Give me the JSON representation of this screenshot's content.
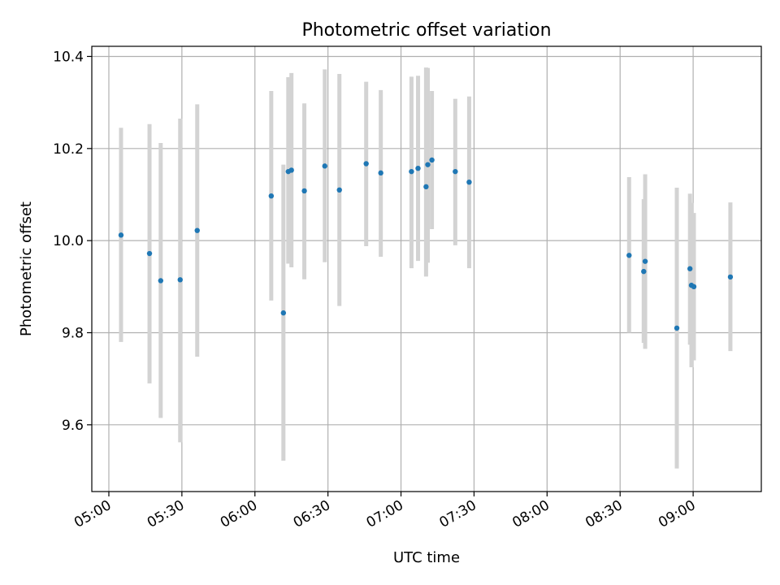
{
  "chart_data": {
    "type": "scatter",
    "title": "Photometric offset variation",
    "xlabel": "UTC time",
    "ylabel": "Photometric offset",
    "xlim": [
      -7,
      268
    ],
    "ylim": [
      9.455,
      10.422
    ],
    "grid": true,
    "x_unit": "minutes after 05:00 UTC",
    "x_ticks": [
      {
        "value": 0,
        "label": "05:00"
      },
      {
        "value": 30,
        "label": "05:30"
      },
      {
        "value": 60,
        "label": "06:00"
      },
      {
        "value": 90,
        "label": "06:30"
      },
      {
        "value": 120,
        "label": "07:00"
      },
      {
        "value": 150,
        "label": "07:30"
      },
      {
        "value": 180,
        "label": "08:00"
      },
      {
        "value": 210,
        "label": "08:30"
      },
      {
        "value": 240,
        "label": "09:00"
      }
    ],
    "y_ticks": [
      {
        "value": 9.6,
        "label": "9.6"
      },
      {
        "value": 9.8,
        "label": "9.8"
      },
      {
        "value": 10.0,
        "label": "10.0"
      },
      {
        "value": 10.2,
        "label": "10.2"
      },
      {
        "value": 10.4,
        "label": "10.4"
      }
    ],
    "series": [
      {
        "name": "Photometric offset",
        "color": "#1f77b4",
        "error_color": "#d3d3d3",
        "points": [
          {
            "x": 5.0,
            "y": 10.012,
            "low": 9.78,
            "high": 10.245
          },
          {
            "x": 16.7,
            "y": 9.972,
            "low": 9.69,
            "high": 10.253
          },
          {
            "x": 21.3,
            "y": 9.913,
            "low": 9.615,
            "high": 10.212
          },
          {
            "x": 29.3,
            "y": 9.915,
            "low": 9.562,
            "high": 10.265
          },
          {
            "x": 36.3,
            "y": 10.022,
            "low": 9.748,
            "high": 10.296
          },
          {
            "x": 66.7,
            "y": 10.097,
            "low": 9.87,
            "high": 10.325
          },
          {
            "x": 71.7,
            "y": 9.843,
            "low": 9.522,
            "high": 10.165
          },
          {
            "x": 73.7,
            "y": 10.15,
            "low": 9.95,
            "high": 10.355
          },
          {
            "x": 75.0,
            "y": 10.153,
            "low": 9.942,
            "high": 10.364
          },
          {
            "x": 80.3,
            "y": 10.108,
            "low": 9.916,
            "high": 10.298
          },
          {
            "x": 88.7,
            "y": 10.162,
            "low": 9.953,
            "high": 10.372
          },
          {
            "x": 94.7,
            "y": 10.11,
            "low": 9.858,
            "high": 10.362
          },
          {
            "x": 105.7,
            "y": 10.167,
            "low": 9.988,
            "high": 10.345
          },
          {
            "x": 111.7,
            "y": 10.147,
            "low": 9.965,
            "high": 10.327
          },
          {
            "x": 124.3,
            "y": 10.15,
            "low": 9.94,
            "high": 10.356
          },
          {
            "x": 127.0,
            "y": 10.157,
            "low": 9.956,
            "high": 10.358
          },
          {
            "x": 130.3,
            "y": 10.117,
            "low": 9.922,
            "high": 10.376
          },
          {
            "x": 131.0,
            "y": 10.165,
            "low": 9.952,
            "high": 10.375
          },
          {
            "x": 132.7,
            "y": 10.175,
            "low": 10.025,
            "high": 10.325
          },
          {
            "x": 142.3,
            "y": 10.15,
            "low": 9.99,
            "high": 10.308
          },
          {
            "x": 148.0,
            "y": 10.127,
            "low": 9.94,
            "high": 10.313
          },
          {
            "x": 213.7,
            "y": 9.968,
            "low": 9.8,
            "high": 10.138
          },
          {
            "x": 219.7,
            "y": 9.933,
            "low": 9.778,
            "high": 10.09
          },
          {
            "x": 220.3,
            "y": 9.955,
            "low": 9.765,
            "high": 10.144
          },
          {
            "x": 233.3,
            "y": 9.81,
            "low": 9.505,
            "high": 10.115
          },
          {
            "x": 238.7,
            "y": 9.939,
            "low": 9.774,
            "high": 10.102
          },
          {
            "x": 239.3,
            "y": 9.903,
            "low": 9.725,
            "high": 10.082
          },
          {
            "x": 240.3,
            "y": 9.9,
            "low": 9.74,
            "high": 10.06
          },
          {
            "x": 255.3,
            "y": 9.921,
            "low": 9.76,
            "high": 10.083
          }
        ]
      }
    ]
  }
}
